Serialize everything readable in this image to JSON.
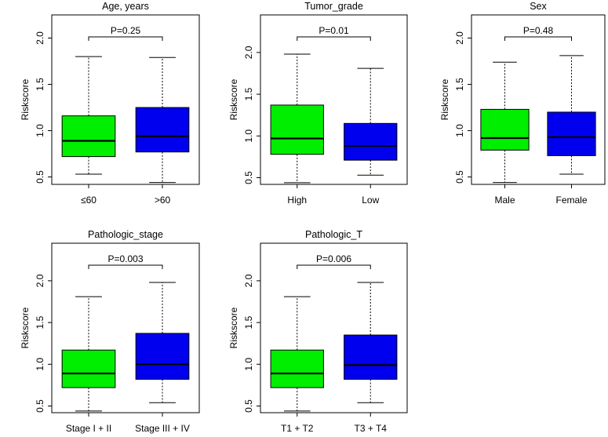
{
  "colors": {
    "group1": "#00ee00",
    "group2": "#0000ee",
    "stroke": "#000000"
  },
  "chart_data": [
    {
      "type": "boxplot",
      "title": "Age, years",
      "ylabel": "Riskscore",
      "ylim": [
        0.42,
        2.25
      ],
      "yticks": [
        "0.5",
        "1.0",
        "1.5",
        "2.0"
      ],
      "pvalue": "P=0.25",
      "groups": [
        {
          "name": "≤60",
          "min": 0.53,
          "q1": 0.72,
          "median": 0.89,
          "q3": 1.16,
          "max": 1.8
        },
        {
          "name": ">60",
          "min": 0.44,
          "q1": 0.77,
          "median": 0.94,
          "q3": 1.25,
          "max": 1.79
        }
      ]
    },
    {
      "type": "boxplot",
      "title": "Tumor_grade",
      "ylabel": "Riskscore",
      "ylim": [
        0.42,
        2.45
      ],
      "yticks": [
        "0.5",
        "1.0",
        "1.5",
        "2.0"
      ],
      "pvalue": "P=0.01",
      "groups": [
        {
          "name": "High",
          "min": 0.44,
          "q1": 0.78,
          "median": 0.97,
          "q3": 1.37,
          "max": 1.98
        },
        {
          "name": "Low",
          "min": 0.53,
          "q1": 0.71,
          "median": 0.88,
          "q3": 1.15,
          "max": 1.81
        }
      ]
    },
    {
      "type": "boxplot",
      "title": "Sex",
      "ylabel": "Riskscore",
      "ylim": [
        0.42,
        2.25
      ],
      "yticks": [
        "0.5",
        "1.0",
        "1.5",
        "2.0"
      ],
      "pvalue": "P=0.48",
      "groups": [
        {
          "name": "Male",
          "min": 0.44,
          "q1": 0.79,
          "median": 0.92,
          "q3": 1.23,
          "max": 1.74
        },
        {
          "name": "Female",
          "min": 0.53,
          "q1": 0.73,
          "median": 0.93,
          "q3": 1.2,
          "max": 1.81
        }
      ]
    },
    {
      "type": "boxplot",
      "title": "Pathologic_stage",
      "ylabel": "Riskscore",
      "ylim": [
        0.42,
        2.45
      ],
      "yticks": [
        "0.5",
        "1.0",
        "1.5",
        "2.0"
      ],
      "pvalue": "P=0.003",
      "groups": [
        {
          "name": "Stage I + II",
          "min": 0.44,
          "q1": 0.72,
          "median": 0.89,
          "q3": 1.17,
          "max": 1.81
        },
        {
          "name": "Stage III + IV",
          "min": 0.54,
          "q1": 0.82,
          "median": 1.0,
          "q3": 1.37,
          "max": 1.98
        }
      ]
    },
    {
      "type": "boxplot",
      "title": "Pathologic_T",
      "ylabel": "Riskscore",
      "ylim": [
        0.42,
        2.45
      ],
      "yticks": [
        "0.5",
        "1.0",
        "1.5",
        "2.0"
      ],
      "pvalue": "P=0.006",
      "groups": [
        {
          "name": "T1 + T2",
          "min": 0.44,
          "q1": 0.72,
          "median": 0.89,
          "q3": 1.17,
          "max": 1.81
        },
        {
          "name": "T3 + T4",
          "min": 0.54,
          "q1": 0.82,
          "median": 0.99,
          "q3": 1.35,
          "max": 1.98
        }
      ]
    }
  ]
}
